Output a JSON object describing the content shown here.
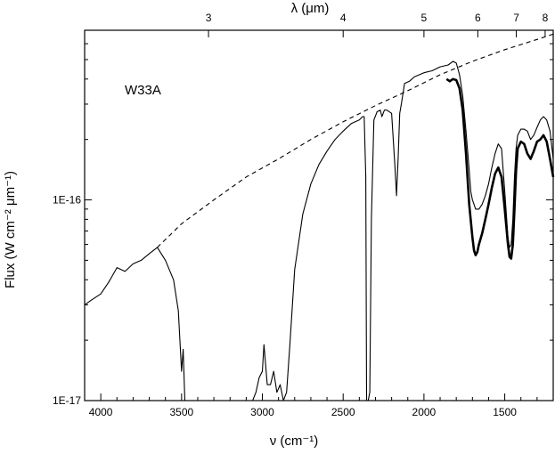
{
  "chart_data": {
    "type": "line",
    "title": "",
    "annotation": "W33A",
    "xlabel": "ν (cm⁻¹)",
    "ylabel": "Flux (W cm⁻² μm⁻¹)",
    "top_axis_label": "λ (μm)",
    "x_scale": "linear",
    "x_range": [
      4100,
      1200
    ],
    "x_reversed": true,
    "x_ticks": [
      4000,
      3500,
      3000,
      2500,
      2000,
      1500
    ],
    "y_scale": "log",
    "y_range": [
      1e-17,
      7e-16
    ],
    "y_tick_labels": [
      {
        "value": 1e-17,
        "label": "1E-17"
      },
      {
        "value": 1e-16,
        "label": "1E-16"
      }
    ],
    "top_ticks_um": [
      3,
      4,
      5,
      6,
      7,
      8
    ],
    "grid": false,
    "legend": "none",
    "series": [
      {
        "style": "dashed",
        "x": [
          3650,
          3500,
          3300,
          3100,
          2900,
          2700,
          2500,
          2300,
          2100,
          1900,
          1700,
          1500,
          1300,
          1200
        ],
        "y": [
          5.8e-17,
          7.6e-17,
          1e-16,
          1.3e-16,
          1.6e-16,
          2e-16,
          2.45e-16,
          2.95e-16,
          3.5e-16,
          4.2e-16,
          4.9e-16,
          5.6e-16,
          6.3e-16,
          6.7e-16
        ]
      },
      {
        "style": "solid",
        "x": [
          4100,
          4050,
          4000,
          3950,
          3900,
          3850,
          3800,
          3750,
          3700,
          3650,
          3600,
          3550,
          3520,
          3500,
          3490,
          3480
        ],
        "y": [
          3e-17,
          3.2e-17,
          3.4e-17,
          3.9e-17,
          4.6e-17,
          4.4e-17,
          4.8e-17,
          5e-17,
          5.4e-17,
          5.8e-17,
          5e-17,
          4e-17,
          2.8e-17,
          1.4e-17,
          1.8e-17,
          1e-17
        ]
      },
      {
        "style": "solid",
        "x": [
          3060,
          3040,
          3020,
          3000,
          2990,
          2970,
          2950,
          2930,
          2910,
          2890,
          2870,
          2850,
          2830,
          2800,
          2750,
          2700,
          2650,
          2600,
          2550,
          2500,
          2450,
          2400,
          2380,
          2370,
          2360,
          2355,
          2345,
          2335,
          2325,
          2310,
          2290,
          2270,
          2260,
          2245,
          2230,
          2200,
          2180,
          2170,
          2160,
          2150,
          2140,
          2120,
          2090,
          2060,
          2000,
          1950,
          1900,
          1850,
          1820,
          1800,
          1780,
          1760,
          1740,
          1720,
          1710,
          1700,
          1690,
          1680,
          1660,
          1640,
          1620,
          1600,
          1580,
          1560,
          1540,
          1520,
          1500,
          1480,
          1470,
          1460,
          1450,
          1440,
          1430,
          1420,
          1400,
          1380,
          1360,
          1340,
          1320,
          1300,
          1280,
          1260,
          1240,
          1220,
          1200
        ],
        "y": [
          1e-17,
          1.1e-17,
          1.3e-17,
          1.4e-17,
          1.9e-17,
          1.2e-17,
          1.2e-17,
          1.4e-17,
          1.1e-17,
          1.2e-17,
          1e-17,
          1.1e-17,
          1.9e-17,
          4.5e-17,
          8.5e-17,
          1.2e-16,
          1.5e-16,
          1.75e-16,
          2e-16,
          2.2e-16,
          2.4e-16,
          2.5e-16,
          2.6e-16,
          2.6e-16,
          1.3e-16,
          1e-17,
          1e-17,
          1.1e-17,
          8e-17,
          2.5e-16,
          2.75e-16,
          2.8e-16,
          2.6e-16,
          2.8e-16,
          2.8e-16,
          2.7e-16,
          1.5e-16,
          1.05e-16,
          1.6e-16,
          2.7e-16,
          3e-16,
          3.8e-16,
          3.9e-16,
          4.1e-16,
          4.3e-16,
          4.4e-16,
          4.6e-16,
          4.7e-16,
          4.9e-16,
          4.8e-16,
          4.2e-16,
          3.3e-16,
          2.2e-16,
          1.4e-16,
          1.1e-16,
          1e-16,
          9.5e-17,
          9e-17,
          9e-17,
          9.5e-17,
          1.05e-16,
          1.2e-16,
          1.45e-16,
          1.7e-16,
          1.9e-16,
          1.8e-16,
          1.1e-16,
          6.5e-17,
          5.8e-17,
          6e-17,
          8e-17,
          1.3e-16,
          1.8e-16,
          2.1e-16,
          2.25e-16,
          2.25e-16,
          2.2e-16,
          2e-16,
          2.1e-16,
          2.3e-16,
          2.5e-16,
          2.6e-16,
          2.5e-16,
          2.2e-16,
          1.6e-16
        ]
      },
      {
        "style": "thick",
        "x": [
          1860,
          1840,
          1820,
          1800,
          1780,
          1760,
          1740,
          1720,
          1700,
          1690,
          1680,
          1670,
          1660,
          1640,
          1620,
          1600,
          1580,
          1560,
          1540,
          1520,
          1500,
          1480,
          1470,
          1460,
          1450,
          1440,
          1430,
          1420,
          1400,
          1380,
          1360,
          1340,
          1320,
          1300,
          1280,
          1260,
          1240,
          1220,
          1200
        ],
        "y": [
          4e-16,
          3.9e-16,
          4e-16,
          3.95e-16,
          3.6e-16,
          2.8e-16,
          1.7e-16,
          9.5e-17,
          6.5e-17,
          5.6e-17,
          5.3e-17,
          5.5e-17,
          6e-17,
          6.8e-17,
          8e-17,
          9.5e-17,
          1.15e-16,
          1.35e-16,
          1.45e-16,
          1.3e-16,
          9e-17,
          6e-17,
          5.2e-17,
          5.1e-17,
          6e-17,
          9e-17,
          1.4e-16,
          1.8e-16,
          1.95e-16,
          1.9e-16,
          1.7e-16,
          1.6e-16,
          1.75e-16,
          1.95e-16,
          2e-16,
          2.1e-16,
          1.95e-16,
          1.6e-16,
          1.3e-16
        ]
      }
    ]
  }
}
